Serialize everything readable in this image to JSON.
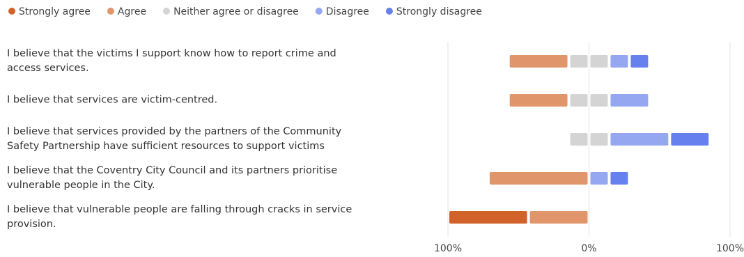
{
  "chart_data": {
    "type": "diverging_bar",
    "categories": [
      "I believe that the victims I support know how to report crime and access services.",
      "I believe that services are victim-centred.",
      "I believe that services provided by the partners of the Community Safety Partnership have sufficient resources to support victims",
      "I believe that the Coventry City Council and its partners prioritise vulnerable people in the City.",
      "I believe that vulnerable people are falling through cracks in service provision."
    ],
    "series": [
      {
        "name": "Strongly agree",
        "color": "#d0622a",
        "values": [
          0,
          0,
          0,
          0,
          57.1
        ]
      },
      {
        "name": "Agree",
        "color": "#e0956a",
        "values": [
          42.9,
          42.9,
          0,
          71.4,
          42.9
        ]
      },
      {
        "name": "Neither agree or disagree",
        "color": "#d4d4d4",
        "values": [
          28.6,
          28.6,
          28.6,
          0,
          0
        ]
      },
      {
        "name": "Disagree",
        "color": "#94a7f0",
        "values": [
          14.3,
          28.6,
          42.9,
          14.3,
          0
        ]
      },
      {
        "name": "Strongly disagree",
        "color": "#6680ee",
        "values": [
          14.3,
          0,
          28.6,
          14.3,
          0
        ]
      }
    ],
    "xlim": [
      -100,
      100
    ],
    "xticks": [
      {
        "value": -100,
        "label": "100%"
      },
      {
        "value": 0,
        "label": "0%"
      },
      {
        "value": 100,
        "label": "100%"
      }
    ],
    "grid": true
  }
}
